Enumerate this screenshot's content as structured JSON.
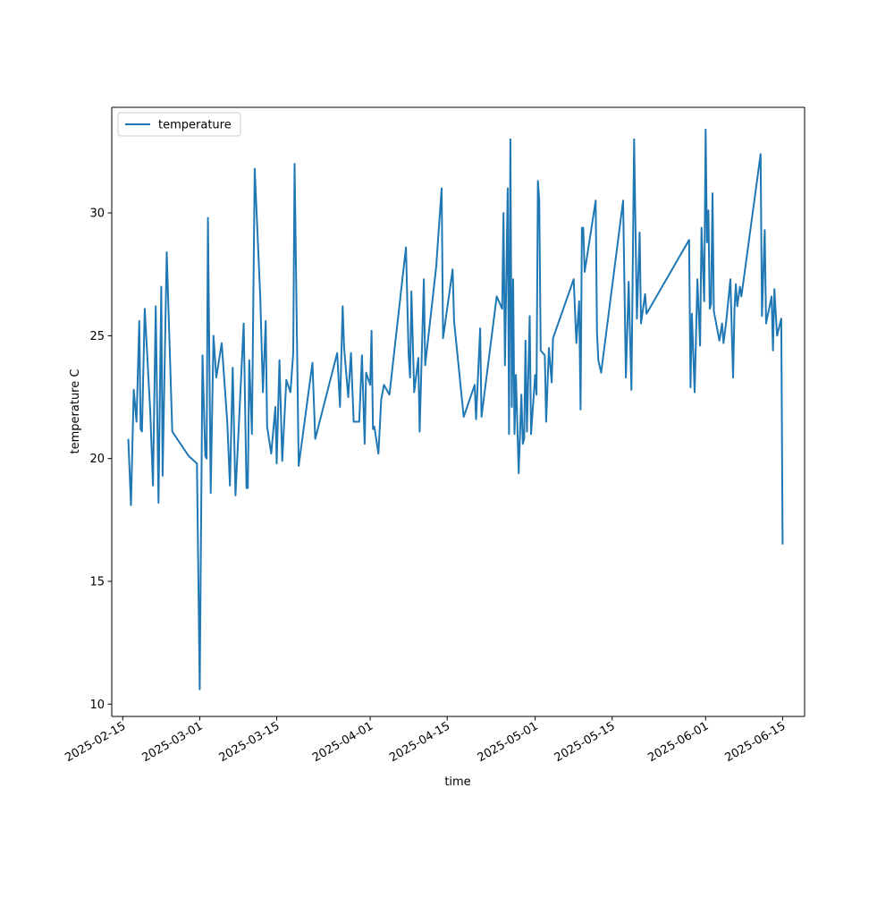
{
  "chart_data": {
    "type": "line",
    "title": "",
    "xlabel": "time",
    "ylabel": "temperature C",
    "x_ticks": [
      "2025-02-15",
      "2025-03-01",
      "2025-03-15",
      "2025-04-01",
      "2025-04-15",
      "2025-05-01",
      "2025-05-15",
      "2025-06-01",
      "2025-06-15"
    ],
    "y_ticks": [
      10,
      15,
      20,
      25,
      30
    ],
    "xlim": [
      "2025-02-13",
      "2025-06-19"
    ],
    "ylim": [
      9.5,
      34.3
    ],
    "grid": false,
    "legend_position": "top-left",
    "line_color": "#1f77b4",
    "series": [
      {
        "name": "temperature",
        "points": [
          [
            "2025-02-16",
            20.8
          ],
          [
            "2025-02-16T12:00",
            18.1
          ],
          [
            "2025-02-17",
            22.8
          ],
          [
            "2025-02-17T12:00",
            21.5
          ],
          [
            "2025-02-18",
            25.6
          ],
          [
            "2025-02-18T06:00",
            21.2
          ],
          [
            "2025-02-18T12:00",
            21.1
          ],
          [
            "2025-02-19",
            26.1
          ],
          [
            "2025-02-20",
            21.9
          ],
          [
            "2025-02-20T12:00",
            18.9
          ],
          [
            "2025-02-21",
            26.2
          ],
          [
            "2025-02-21T12:00",
            18.2
          ],
          [
            "2025-02-22",
            27.0
          ],
          [
            "2025-02-22T06:00",
            19.3
          ],
          [
            "2025-02-23",
            28.4
          ],
          [
            "2025-02-24",
            21.1
          ],
          [
            "2025-02-27",
            20.1
          ],
          [
            "2025-02-28T12:00",
            19.8
          ],
          [
            "2025-03-01",
            10.6
          ],
          [
            "2025-03-01T12:00",
            24.2
          ],
          [
            "2025-03-02",
            20.1
          ],
          [
            "2025-03-02T06:00",
            20.0
          ],
          [
            "2025-03-02T12:00",
            29.8
          ],
          [
            "2025-03-03",
            18.6
          ],
          [
            "2025-03-03T12:00",
            25.0
          ],
          [
            "2025-03-04",
            23.3
          ],
          [
            "2025-03-05",
            24.7
          ],
          [
            "2025-03-06",
            21.5
          ],
          [
            "2025-03-06T12:00",
            18.9
          ],
          [
            "2025-03-07",
            23.7
          ],
          [
            "2025-03-07T12:00",
            18.5
          ],
          [
            "2025-03-09",
            25.5
          ],
          [
            "2025-03-09T12:00",
            18.8
          ],
          [
            "2025-03-09T18:00",
            18.8
          ],
          [
            "2025-03-10",
            24.0
          ],
          [
            "2025-03-10T12:00",
            21.0
          ],
          [
            "2025-03-11",
            31.8
          ],
          [
            "2025-03-12",
            26.6
          ],
          [
            "2025-03-12T12:00",
            22.7
          ],
          [
            "2025-03-13",
            25.6
          ],
          [
            "2025-03-13T06:00",
            21.3
          ],
          [
            "2025-03-14",
            20.2
          ],
          [
            "2025-03-14T18:00",
            22.1
          ],
          [
            "2025-03-15",
            19.8
          ],
          [
            "2025-03-15T12:00",
            24.0
          ],
          [
            "2025-03-16",
            19.9
          ],
          [
            "2025-03-16T18:00",
            23.2
          ],
          [
            "2025-03-17T12:00",
            22.7
          ],
          [
            "2025-03-18",
            24.3
          ],
          [
            "2025-03-18T06:00",
            32.0
          ],
          [
            "2025-03-19",
            19.7
          ],
          [
            "2025-03-21T12:00",
            23.9
          ],
          [
            "2025-03-22",
            20.8
          ],
          [
            "2025-03-26",
            24.3
          ],
          [
            "2025-03-26T12:00",
            22.1
          ],
          [
            "2025-03-27",
            26.2
          ],
          [
            "2025-03-27T06:00",
            24.5
          ],
          [
            "2025-03-28",
            22.5
          ],
          [
            "2025-03-28T12:00",
            24.3
          ],
          [
            "2025-03-29",
            21.5
          ],
          [
            "2025-03-30",
            21.5
          ],
          [
            "2025-03-30T12:00",
            24.2
          ],
          [
            "2025-03-31",
            20.6
          ],
          [
            "2025-03-31T06:00",
            23.5
          ],
          [
            "2025-04-01",
            23.0
          ],
          [
            "2025-04-01T06:00",
            25.2
          ],
          [
            "2025-04-01T12:00",
            21.2
          ],
          [
            "2025-04-01T18:00",
            21.3
          ],
          [
            "2025-04-02T12:00",
            20.2
          ],
          [
            "2025-04-03",
            22.4
          ],
          [
            "2025-04-03T12:00",
            23.0
          ],
          [
            "2025-04-04T12:00",
            22.6
          ],
          [
            "2025-04-07T12:00",
            28.6
          ],
          [
            "2025-04-08",
            24.2
          ],
          [
            "2025-04-08T06:00",
            23.3
          ],
          [
            "2025-04-08T12:00",
            26.8
          ],
          [
            "2025-04-09",
            22.7
          ],
          [
            "2025-04-09T18:00",
            24.1
          ],
          [
            "2025-04-10",
            21.1
          ],
          [
            "2025-04-10T18:00",
            27.3
          ],
          [
            "2025-04-11",
            23.8
          ],
          [
            "2025-04-13",
            27.8
          ],
          [
            "2025-04-14",
            31.0
          ],
          [
            "2025-04-14T06:00",
            24.9
          ],
          [
            "2025-04-16",
            27.7
          ],
          [
            "2025-04-16T06:00",
            25.6
          ],
          [
            "2025-04-18",
            21.7
          ],
          [
            "2025-04-20",
            23.0
          ],
          [
            "2025-04-20T06:00",
            21.6
          ],
          [
            "2025-04-21",
            25.3
          ],
          [
            "2025-04-21T06:00",
            21.7
          ],
          [
            "2025-04-24",
            26.6
          ],
          [
            "2025-04-25",
            26.1
          ],
          [
            "2025-04-25T06:00",
            30.0
          ],
          [
            "2025-04-25T12:00",
            23.8
          ],
          [
            "2025-04-26",
            31.0
          ],
          [
            "2025-04-26T06:00",
            21.0
          ],
          [
            "2025-04-26T12:00",
            33.0
          ],
          [
            "2025-04-26T18:00",
            22.1
          ],
          [
            "2025-04-27",
            27.3
          ],
          [
            "2025-04-27T06:00",
            21.0
          ],
          [
            "2025-04-27T12:00",
            23.4
          ],
          [
            "2025-04-28",
            19.4
          ],
          [
            "2025-04-28T12:00",
            22.6
          ],
          [
            "2025-04-28T18:00",
            20.6
          ],
          [
            "2025-04-29",
            20.8
          ],
          [
            "2025-04-29T06:00",
            24.8
          ],
          [
            "2025-04-29T12:00",
            21.1
          ],
          [
            "2025-04-30",
            25.8
          ],
          [
            "2025-04-30T06:00",
            21.0
          ],
          [
            "2025-05-01",
            23.4
          ],
          [
            "2025-05-01T06:00",
            22.6
          ],
          [
            "2025-05-01T12:00",
            31.3
          ],
          [
            "2025-05-01T18:00",
            30.5
          ],
          [
            "2025-05-02",
            24.4
          ],
          [
            "2025-05-02T18:00",
            24.2
          ],
          [
            "2025-05-03",
            21.5
          ],
          [
            "2025-05-03T12:00",
            24.5
          ],
          [
            "2025-05-04",
            23.1
          ],
          [
            "2025-05-04T06:00",
            24.9
          ],
          [
            "2025-05-08",
            27.3
          ],
          [
            "2025-05-08T12:00",
            24.7
          ],
          [
            "2025-05-09",
            26.4
          ],
          [
            "2025-05-09T06:00",
            22.0
          ],
          [
            "2025-05-09T12:00",
            29.4
          ],
          [
            "2025-05-09T18:00",
            29.4
          ],
          [
            "2025-05-10",
            27.6
          ],
          [
            "2025-05-12",
            30.5
          ],
          [
            "2025-05-12T06:00",
            25.1
          ],
          [
            "2025-05-12T12:00",
            24.0
          ],
          [
            "2025-05-13",
            23.5
          ],
          [
            "2025-05-17",
            30.5
          ],
          [
            "2025-05-17T12:00",
            23.3
          ],
          [
            "2025-05-18",
            27.2
          ],
          [
            "2025-05-18T12:00",
            22.8
          ],
          [
            "2025-05-19",
            33.0
          ],
          [
            "2025-05-19T12:00",
            25.7
          ],
          [
            "2025-05-20",
            29.2
          ],
          [
            "2025-05-20T06:00",
            25.5
          ],
          [
            "2025-05-21",
            26.7
          ],
          [
            "2025-05-21T06:00",
            25.9
          ],
          [
            "2025-05-29",
            28.9
          ],
          [
            "2025-05-29T06:00",
            22.9
          ],
          [
            "2025-05-29T12:00",
            25.9
          ],
          [
            "2025-05-30",
            22.7
          ],
          [
            "2025-05-30T12:00",
            27.3
          ],
          [
            "2025-05-31",
            24.6
          ],
          [
            "2025-05-31T06:00",
            29.4
          ],
          [
            "2025-05-31T18:00",
            26.4
          ],
          [
            "2025-06-01",
            33.4
          ],
          [
            "2025-06-01T06:00",
            28.8
          ],
          [
            "2025-06-01T12:00",
            30.1
          ],
          [
            "2025-06-01T18:00",
            26.1
          ],
          [
            "2025-06-02",
            26.3
          ],
          [
            "2025-06-02T06:00",
            30.8
          ],
          [
            "2025-06-02T12:00",
            26.0
          ],
          [
            "2025-06-03T12:00",
            24.8
          ],
          [
            "2025-06-04",
            25.5
          ],
          [
            "2025-06-04T06:00",
            24.7
          ],
          [
            "2025-06-04T18:00",
            25.6
          ],
          [
            "2025-06-05T12:00",
            27.3
          ],
          [
            "2025-06-06",
            23.3
          ],
          [
            "2025-06-06T06:00",
            26.1
          ],
          [
            "2025-06-06T12:00",
            27.1
          ],
          [
            "2025-06-06T18:00",
            26.2
          ],
          [
            "2025-06-07",
            26.6
          ],
          [
            "2025-06-07T06:00",
            27.0
          ],
          [
            "2025-06-07T12:00",
            26.6
          ],
          [
            "2025-06-11",
            32.4
          ],
          [
            "2025-06-11T06:00",
            25.8
          ],
          [
            "2025-06-11T18:00",
            29.3
          ],
          [
            "2025-06-12",
            25.5
          ],
          [
            "2025-06-13",
            26.6
          ],
          [
            "2025-06-13T06:00",
            24.4
          ],
          [
            "2025-06-13T12:00",
            26.9
          ],
          [
            "2025-06-14",
            25.0
          ],
          [
            "2025-06-14T18:00",
            25.7
          ],
          [
            "2025-06-15",
            16.5
          ]
        ]
      }
    ]
  }
}
